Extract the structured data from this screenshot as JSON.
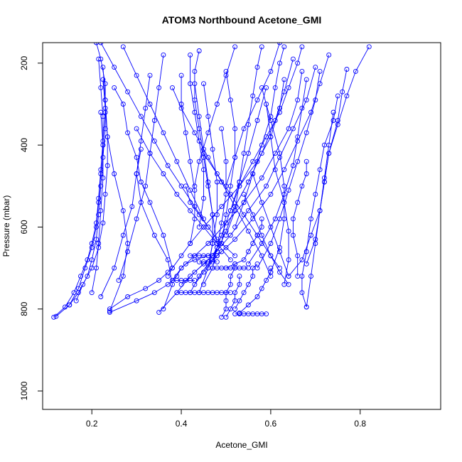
{
  "chart_data": {
    "type": "line",
    "title": "ATOM3 Northbound Acetone_GMI",
    "xlabel": "Acetone_GMI",
    "ylabel": "Pressure (mbar)",
    "xlim": [
      0.09,
      0.98
    ],
    "ylim": [
      1045,
      150
    ],
    "y_reversed": true,
    "x_ticks": [
      0.2,
      0.4,
      0.6,
      0.8
    ],
    "y_ticks": [
      200,
      400,
      600,
      800,
      1000
    ],
    "color": "#0000ff",
    "marker": "open-circle",
    "series": [
      {
        "x": [
          0.115,
          0.14,
          0.16,
          0.175,
          0.19,
          0.2,
          0.21,
          0.215,
          0.22,
          0.225,
          0.23,
          0.23,
          0.22,
          0.21
        ],
        "y": [
          820,
          795,
          760,
          720,
          680,
          640,
          590,
          530,
          460,
          390,
          320,
          250,
          190,
          150
        ]
      },
      {
        "x": [
          0.12,
          0.15,
          0.17,
          0.185,
          0.2,
          0.21,
          0.215,
          0.22,
          0.225,
          0.225,
          0.22,
          0.215
        ],
        "y": [
          818,
          790,
          750,
          700,
          650,
          600,
          540,
          470,
          400,
          330,
          260,
          190
        ]
      },
      {
        "x": [
          0.15,
          0.17,
          0.19,
          0.2,
          0.21,
          0.215,
          0.22,
          0.225,
          0.23,
          0.23,
          0.225
        ],
        "y": [
          790,
          760,
          720,
          680,
          630,
          570,
          500,
          430,
          360,
          290,
          210
        ]
      },
      {
        "x": [
          0.165,
          0.18,
          0.2,
          0.215,
          0.225,
          0.23,
          0.235,
          0.235,
          0.23,
          0.225
        ],
        "y": [
          780,
          740,
          700,
          650,
          590,
          520,
          450,
          380,
          310,
          240
        ]
      },
      {
        "x": [
          0.2,
          0.21,
          0.215,
          0.22,
          0.225,
          0.225,
          0.22
        ],
        "y": [
          760,
          700,
          640,
          560,
          480,
          400,
          320
        ]
      },
      {
        "x": [
          0.24,
          0.27,
          0.28,
          0.27,
          0.25,
          0.235,
          0.23
        ],
        "y": [
          805,
          720,
          640,
          560,
          470,
          380,
          290
        ]
      },
      {
        "x": [
          0.24,
          0.3,
          0.34,
          0.37,
          0.39,
          0.4,
          0.41,
          0.43,
          0.46,
          0.48
        ],
        "y": [
          808,
          780,
          760,
          740,
          720,
          700,
          690,
          680,
          670,
          660
        ]
      },
      {
        "x": [
          0.24,
          0.28,
          0.32,
          0.35,
          0.37,
          0.38,
          0.36,
          0.33,
          0.31,
          0.3,
          0.28,
          0.27,
          0.25
        ],
        "y": [
          800,
          770,
          750,
          730,
          710,
          700,
          620,
          540,
          490,
          430,
          370,
          300,
          260
        ]
      },
      {
        "x": [
          0.35,
          0.39,
          0.42,
          0.45,
          0.47,
          0.48,
          0.49
        ],
        "y": [
          808,
          760,
          720,
          690,
          670,
          650,
          640
        ]
      },
      {
        "x": [
          0.36,
          0.38,
          0.37,
          0.34,
          0.31,
          0.3,
          0.31
        ],
        "y": [
          800,
          740,
          680,
          620,
          540,
          470,
          410
        ]
      },
      {
        "x": [
          0.37,
          0.38,
          0.4,
          0.42,
          0.45,
          0.49,
          0.53,
          0.57,
          0.6,
          0.62,
          0.63
        ],
        "y": [
          720,
          700,
          670,
          640,
          600,
          550,
          500,
          440,
          380,
          310,
          240
        ]
      },
      {
        "x": [
          0.38,
          0.4,
          0.43,
          0.46,
          0.5,
          0.54,
          0.58,
          0.61,
          0.64,
          0.66,
          0.67
        ],
        "y": [
          730,
          700,
          670,
          640,
          590,
          540,
          480,
          420,
          360,
          290,
          220
        ]
      },
      {
        "x": [
          0.4,
          0.43,
          0.47,
          0.51,
          0.55,
          0.59,
          0.62,
          0.65,
          0.68,
          0.7
        ],
        "y": [
          740,
          710,
          670,
          620,
          560,
          500,
          430,
          360,
          290,
          210
        ]
      },
      {
        "x": [
          0.42,
          0.44,
          0.46,
          0.47,
          0.48,
          0.49
        ],
        "y": [
          760,
          720,
          690,
          680,
          670,
          660
        ]
      },
      {
        "x": [
          0.43,
          0.45,
          0.48,
          0.52,
          0.56,
          0.6,
          0.63,
          0.66,
          0.69,
          0.71,
          0.73
        ],
        "y": [
          740,
          710,
          670,
          630,
          580,
          520,
          460,
          390,
          320,
          250,
          180
        ]
      },
      {
        "x": [
          0.44,
          0.46,
          0.47,
          0.47,
          0.46,
          0.45,
          0.44,
          0.43
        ],
        "y": [
          760,
          700,
          640,
          570,
          490,
          410,
          330,
          250
        ]
      },
      {
        "x": [
          0.45,
          0.47,
          0.48,
          0.49,
          0.5,
          0.5,
          0.49
        ],
        "y": [
          740,
          700,
          650,
          590,
          520,
          440,
          360
        ]
      },
      {
        "x": [
          0.46,
          0.47,
          0.48,
          0.48,
          0.47,
          0.46,
          0.45
        ],
        "y": [
          700,
          640,
          570,
          490,
          410,
          330,
          250
        ]
      },
      {
        "x": [
          0.47,
          0.49,
          0.51,
          0.53,
          0.55,
          0.57,
          0.59
        ],
        "y": [
          680,
          620,
          560,
          490,
          420,
          340,
          260
        ]
      },
      {
        "x": [
          0.48,
          0.5,
          0.52,
          0.55,
          0.58,
          0.61,
          0.63,
          0.65
        ],
        "y": [
          660,
          610,
          550,
          490,
          420,
          340,
          270,
          190
        ]
      },
      {
        "x": [
          0.49,
          0.5,
          0.5,
          0.5,
          0.51,
          0.51,
          0.52,
          0.52
        ],
        "y": [
          820,
          800,
          780,
          760,
          740,
          720,
          700,
          690
        ]
      },
      {
        "x": [
          0.5,
          0.51,
          0.52,
          0.52,
          0.53,
          0.53
        ],
        "y": [
          820,
          800,
          780,
          760,
          740,
          720
        ]
      },
      {
        "x": [
          0.52,
          0.53,
          0.54,
          0.55,
          0.56,
          0.56,
          0.57
        ],
        "y": [
          800,
          780,
          760,
          740,
          720,
          700,
          690
        ]
      },
      {
        "x": [
          0.53,
          0.55,
          0.57,
          0.58,
          0.59,
          0.6,
          0.6
        ],
        "y": [
          810,
          790,
          770,
          750,
          730,
          710,
          700
        ]
      },
      {
        "x": [
          0.5,
          0.52,
          0.54,
          0.55,
          0.56,
          0.57,
          0.58,
          0.58
        ],
        "y": [
          700,
          690,
          680,
          660,
          640,
          620,
          600,
          580
        ]
      },
      {
        "x": [
          0.55,
          0.58,
          0.61,
          0.63,
          0.65,
          0.66,
          0.67,
          0.68
        ],
        "y": [
          690,
          640,
          580,
          520,
          450,
          380,
          310,
          240
        ]
      },
      {
        "x": [
          0.57,
          0.6,
          0.62,
          0.64,
          0.66,
          0.68,
          0.7,
          0.71
        ],
        "y": [
          700,
          640,
          580,
          510,
          440,
          370,
          290,
          220
        ]
      },
      {
        "x": [
          0.6,
          0.62,
          0.63,
          0.63,
          0.62,
          0.6,
          0.58
        ],
        "y": [
          710,
          650,
          580,
          500,
          420,
          340,
          260
        ]
      },
      {
        "x": [
          0.63,
          0.64,
          0.64,
          0.63,
          0.61,
          0.6,
          0.59
        ],
        "y": [
          740,
          680,
          610,
          540,
          460,
          380,
          300
        ]
      },
      {
        "x": [
          0.66,
          0.66,
          0.65,
          0.65,
          0.66,
          0.67,
          0.68,
          0.68
        ],
        "y": [
          720,
          670,
          620,
          580,
          540,
          500,
          470,
          440
        ]
      },
      {
        "x": [
          0.68,
          0.67,
          0.67,
          0.68,
          0.69,
          0.7,
          0.71,
          0.72,
          0.74,
          0.75
        ],
        "y": [
          795,
          760,
          720,
          660,
          580,
          520,
          460,
          400,
          340,
          280
        ]
      },
      {
        "x": [
          0.68,
          0.69,
          0.7,
          0.71,
          0.72,
          0.73,
          0.74
        ],
        "y": [
          795,
          720,
          640,
          560,
          480,
          400,
          320
        ]
      },
      {
        "x": [
          0.64,
          0.67,
          0.69,
          0.71,
          0.72,
          0.73,
          0.75,
          0.77,
          0.79,
          0.82
        ],
        "y": [
          720,
          680,
          620,
          560,
          490,
          420,
          350,
          280,
          220,
          160
        ]
      },
      {
        "x": [
          0.68,
          0.7,
          0.71,
          0.72,
          0.73,
          0.75,
          0.76,
          0.77
        ],
        "y": [
          690,
          630,
          560,
          490,
          420,
          340,
          270,
          215
        ]
      },
      {
        "x": [
          0.22,
          0.25,
          0.27,
          0.29,
          0.3,
          0.31,
          0.32,
          0.33
        ],
        "y": [
          770,
          700,
          620,
          550,
          470,
          390,
          310,
          230
        ]
      },
      {
        "x": [
          0.26,
          0.28,
          0.3,
          0.32,
          0.33,
          0.34,
          0.35,
          0.36
        ],
        "y": [
          730,
          660,
          580,
          500,
          420,
          340,
          260,
          180
        ]
      },
      {
        "x": [
          0.42,
          0.43,
          0.43,
          0.42,
          0.41,
          0.4,
          0.4
        ],
        "y": [
          640,
          580,
          510,
          440,
          370,
          300,
          230
        ]
      },
      {
        "x": [
          0.44,
          0.45,
          0.45,
          0.44,
          0.43,
          0.42,
          0.42
        ],
        "y": [
          600,
          530,
          460,
          390,
          320,
          250,
          180
        ]
      },
      {
        "x": [
          0.48,
          0.47,
          0.46,
          0.45,
          0.44,
          0.43,
          0.43,
          0.44
        ],
        "y": [
          640,
          570,
          500,
          430,
          360,
          290,
          220,
          170
        ]
      },
      {
        "x": [
          0.49,
          0.5,
          0.51,
          0.52,
          0.52,
          0.51,
          0.5
        ],
        "y": [
          640,
          570,
          500,
          430,
          360,
          290,
          220
        ]
      },
      {
        "x": [
          0.5,
          0.52,
          0.53,
          0.54,
          0.55,
          0.56,
          0.57,
          0.58
        ],
        "y": [
          620,
          560,
          490,
          420,
          350,
          280,
          210,
          160
        ]
      },
      {
        "x": [
          0.52,
          0.54,
          0.56,
          0.58,
          0.6,
          0.61,
          0.62,
          0.63
        ],
        "y": [
          600,
          540,
          470,
          400,
          330,
          260,
          200,
          160
        ]
      },
      {
        "x": [
          0.51,
          0.53,
          0.56,
          0.59,
          0.62,
          0.64,
          0.66,
          0.67
        ],
        "y": [
          560,
          500,
          440,
          380,
          320,
          260,
          200,
          160
        ]
      },
      {
        "x": [
          0.41,
          0.42,
          0.44,
          0.46,
          0.48,
          0.5,
          0.52
        ],
        "y": [
          500,
          540,
          570,
          600,
          630,
          650,
          670
        ]
      },
      {
        "x": [
          0.38,
          0.4,
          0.43,
          0.46,
          0.49,
          0.52,
          0.55,
          0.58,
          0.6
        ],
        "y": [
          260,
          310,
          370,
          430,
          490,
          550,
          610,
          670,
          720
        ]
      },
      {
        "x": [
          0.3,
          0.33,
          0.36,
          0.39,
          0.42,
          0.45,
          0.48,
          0.51
        ],
        "y": [
          360,
          420,
          470,
          520,
          560,
          600,
          640,
          680
        ]
      },
      {
        "x": [
          0.22,
          0.25,
          0.28,
          0.31,
          0.34,
          0.37,
          0.4,
          0.43,
          0.46
        ],
        "y": [
          150,
          210,
          270,
          330,
          390,
          450,
          500,
          550,
          600
        ]
      },
      {
        "x": [
          0.27,
          0.3,
          0.33,
          0.36,
          0.39,
          0.42,
          0.45
        ],
        "y": [
          160,
          230,
          300,
          370,
          440,
          510,
          580
        ]
      },
      {
        "x": [
          0.52,
          0.5,
          0.48,
          0.46,
          0.44,
          0.43
        ],
        "y": [
          160,
          230,
          300,
          370,
          440,
          500
        ]
      },
      {
        "x": [
          0.62,
          0.6,
          0.57,
          0.54,
          0.52,
          0.5
        ],
        "y": [
          150,
          220,
          290,
          360,
          430,
          500
        ]
      },
      {
        "x": [
          0.56,
          0.58,
          0.6,
          0.62,
          0.64
        ],
        "y": [
          470,
          540,
          600,
          660,
          720
        ]
      },
      {
        "x": [
          0.54,
          0.56,
          0.58,
          0.6,
          0.62,
          0.64
        ],
        "y": [
          520,
          570,
          620,
          670,
          710,
          740
        ]
      },
      {
        "x": [
          0.45,
          0.48,
          0.51,
          0.54,
          0.57,
          0.6,
          0.62
        ],
        "y": [
          420,
          470,
          520,
          570,
          620,
          670,
          700
        ]
      },
      {
        "x": [
          0.47,
          0.48,
          0.49,
          0.5,
          0.51,
          0.52,
          0.53,
          0.54,
          0.55
        ],
        "y": [
          700,
          700,
          700,
          700,
          700,
          700,
          700,
          700,
          700
        ]
      },
      {
        "x": [
          0.42,
          0.43,
          0.44,
          0.45,
          0.46,
          0.47,
          0.48
        ],
        "y": [
          670,
          670,
          670,
          670,
          670,
          670,
          670
        ]
      },
      {
        "x": [
          0.39,
          0.4,
          0.41,
          0.42,
          0.43,
          0.44,
          0.45,
          0.46,
          0.47,
          0.48,
          0.49,
          0.5,
          0.51
        ],
        "y": [
          760,
          760,
          760,
          760,
          760,
          760,
          760,
          760,
          760,
          760,
          760,
          760,
          760
        ]
      },
      {
        "x": [
          0.52,
          0.53,
          0.54,
          0.55,
          0.56,
          0.57,
          0.58,
          0.59
        ],
        "y": [
          812,
          812,
          812,
          812,
          812,
          812,
          812,
          812
        ]
      },
      {
        "x": [
          0.38,
          0.39,
          0.4,
          0.41,
          0.42,
          0.43
        ],
        "y": [
          730,
          730,
          730,
          730,
          730,
          730
        ]
      },
      {
        "x": [
          0.44,
          0.45,
          0.46,
          0.47,
          0.48
        ],
        "y": [
          685,
          685,
          685,
          685,
          685
        ]
      }
    ]
  }
}
